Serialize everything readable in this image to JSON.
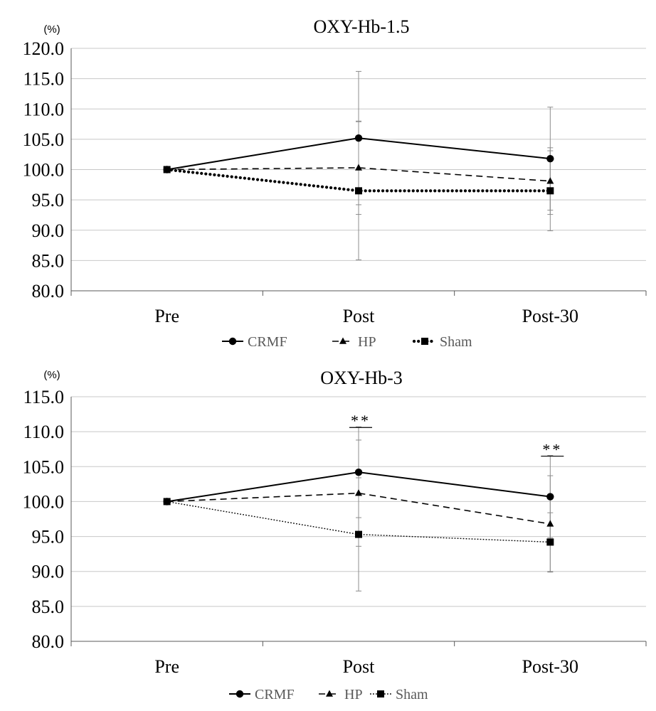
{
  "colors": {
    "series": "#000000",
    "grid": "#c8c8c8",
    "errorbar": "#8c8c8c",
    "legend_text": "#595959"
  },
  "chart_data": [
    {
      "type": "line",
      "title": "OXY-Hb-1.5",
      "unit_label": "(%)",
      "categories": [
        "Pre",
        "Post",
        "Post-30"
      ],
      "ylim": [
        80,
        120
      ],
      "yticks": [
        "80.0",
        "85.0",
        "90.0",
        "95.0",
        "100.0",
        "105.0",
        "110.0",
        "115.0",
        "120.0"
      ],
      "grid": true,
      "legend_position": "bottom",
      "series": [
        {
          "name": "CRMF",
          "marker": "circle",
          "line": "solid",
          "values": [
            100.0,
            105.2,
            101.8
          ],
          "error": [
            0,
            11.0,
            8.5
          ]
        },
        {
          "name": "HP",
          "marker": "triangle",
          "line": "dashed",
          "values": [
            100.0,
            100.3,
            98.1
          ],
          "error": [
            0,
            7.7,
            5.5
          ]
        },
        {
          "name": "Sham",
          "marker": "square",
          "line": "dotted",
          "values": [
            100.0,
            96.5,
            96.5
          ],
          "error": [
            0,
            11.4,
            6.6
          ]
        }
      ],
      "annotations": []
    },
    {
      "type": "line",
      "title": "OXY-Hb-3",
      "unit_label": "(%)",
      "categories": [
        "Pre",
        "Post",
        "Post-30"
      ],
      "ylim": [
        80,
        115
      ],
      "yticks": [
        "80.0",
        "85.0",
        "90.0",
        "95.0",
        "100.0",
        "105.0",
        "110.0",
        "115.0"
      ],
      "grid": true,
      "legend_position": "bottom",
      "series": [
        {
          "name": "CRMF",
          "marker": "circle",
          "line": "solid",
          "values": [
            100.0,
            104.2,
            100.7
          ],
          "error": [
            0,
            6.5,
            5.9
          ]
        },
        {
          "name": "HP",
          "marker": "triangle",
          "line": "dashed",
          "values": [
            100.0,
            101.2,
            96.8
          ],
          "error": [
            0,
            7.6,
            6.9
          ]
        },
        {
          "name": "Sham",
          "marker": "square",
          "line": "dotted-fine",
          "values": [
            100.0,
            95.3,
            94.2
          ],
          "error": [
            0,
            8.1,
            4.2
          ]
        }
      ],
      "annotations": [
        {
          "category": "Post",
          "text": "**",
          "value": 110.6
        },
        {
          "category": "Post-30",
          "text": "**",
          "value": 106.5
        }
      ]
    }
  ]
}
